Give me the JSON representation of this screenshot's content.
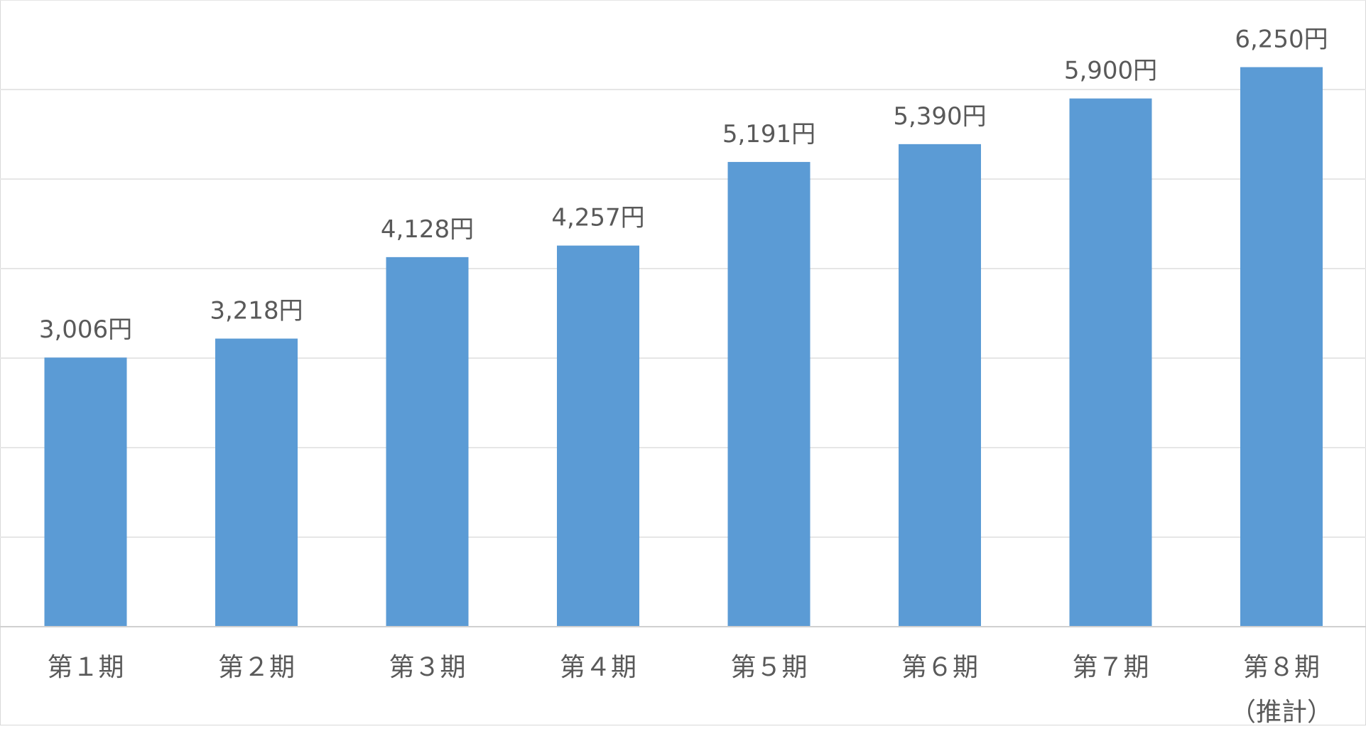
{
  "chart_data": {
    "type": "bar",
    "categories": [
      [
        "第１期"
      ],
      [
        "第２期"
      ],
      [
        "第３期"
      ],
      [
        "第４期"
      ],
      [
        "第５期"
      ],
      [
        "第６期"
      ],
      [
        "第７期"
      ],
      [
        "第８期",
        "（推計）"
      ]
    ],
    "values": [
      3006,
      3218,
      4128,
      4257,
      5191,
      5390,
      5900,
      6250
    ],
    "data_labels": [
      "3,006円",
      "3,218円",
      "4,128円",
      "4,257円",
      "5,191円",
      "5,390円",
      "5,900円",
      "6,250円"
    ],
    "unit": "円",
    "ylim": [
      0,
      7000
    ],
    "grid": true,
    "bar_color": "#5B9BD5",
    "grid_color": "#E6E6E6",
    "axis_color": "#D0D0D0",
    "text_color": "#595959"
  }
}
